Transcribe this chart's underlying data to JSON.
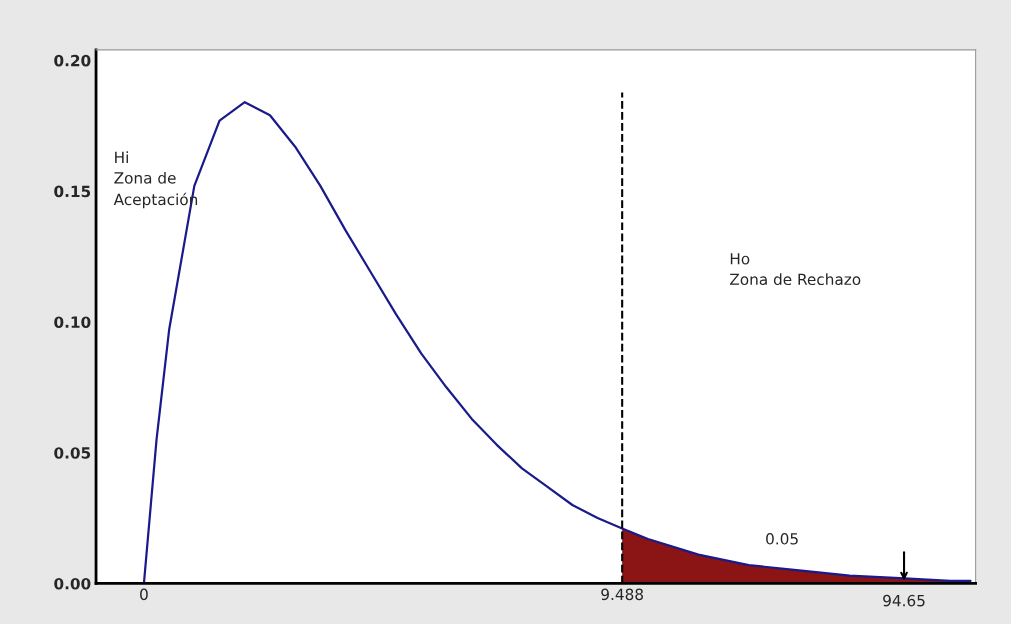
{
  "chart_data": {
    "type": "line",
    "xlim": [
      -0.95,
      16.5
    ],
    "ylim": [
      0,
      0.204
    ],
    "xticks": [
      0,
      9.488
    ],
    "yticks": [
      {
        "value": 0,
        "label": "0.00"
      },
      {
        "value": 0.05,
        "label": "0.05"
      },
      {
        "value": 0.1,
        "label": "0.10"
      },
      {
        "value": 0.15,
        "label": "0.15"
      },
      {
        "value": 0.2,
        "label": "0.20"
      }
    ],
    "grid": false,
    "legend": false,
    "series": [
      {
        "type": "area",
        "color": "#8b1414",
        "x": [
          9.488,
          10,
          11,
          12,
          13,
          14,
          15,
          16,
          16.4
        ],
        "values": [
          0.021,
          0.017,
          0.011,
          0.007,
          0.005,
          0.003,
          0.002,
          0.001,
          0.001
        ]
      },
      {
        "color": "#1a1a8c",
        "x": [
          0,
          0.25,
          0.5,
          1,
          1.5,
          2,
          2.5,
          3,
          3.5,
          4,
          4.5,
          5,
          5.5,
          6,
          6.5,
          7,
          7.5,
          8,
          8.5,
          9,
          9.488,
          10,
          11,
          12,
          13,
          14,
          15,
          16,
          16.4
        ],
        "values": [
          0,
          0.055,
          0.097,
          0.152,
          0.177,
          0.184,
          0.179,
          0.167,
          0.152,
          0.135,
          0.119,
          0.103,
          0.088,
          0.075,
          0.063,
          0.053,
          0.044,
          0.037,
          0.03,
          0.025,
          0.021,
          0.017,
          0.011,
          0.007,
          0.005,
          0.003,
          0.002,
          0.001,
          0.001
        ]
      }
    ],
    "ref_lines": [
      {
        "axis": "x",
        "value": 9.488,
        "color": "#000000",
        "line_style": "dashed"
      }
    ],
    "annotations": [
      "Hi\nZona de\nAceptación",
      "Ho\nZona de Rechazo",
      "0.05",
      {
        "text": "94.65",
        "x": 15.08,
        "y": 0
      }
    ]
  }
}
